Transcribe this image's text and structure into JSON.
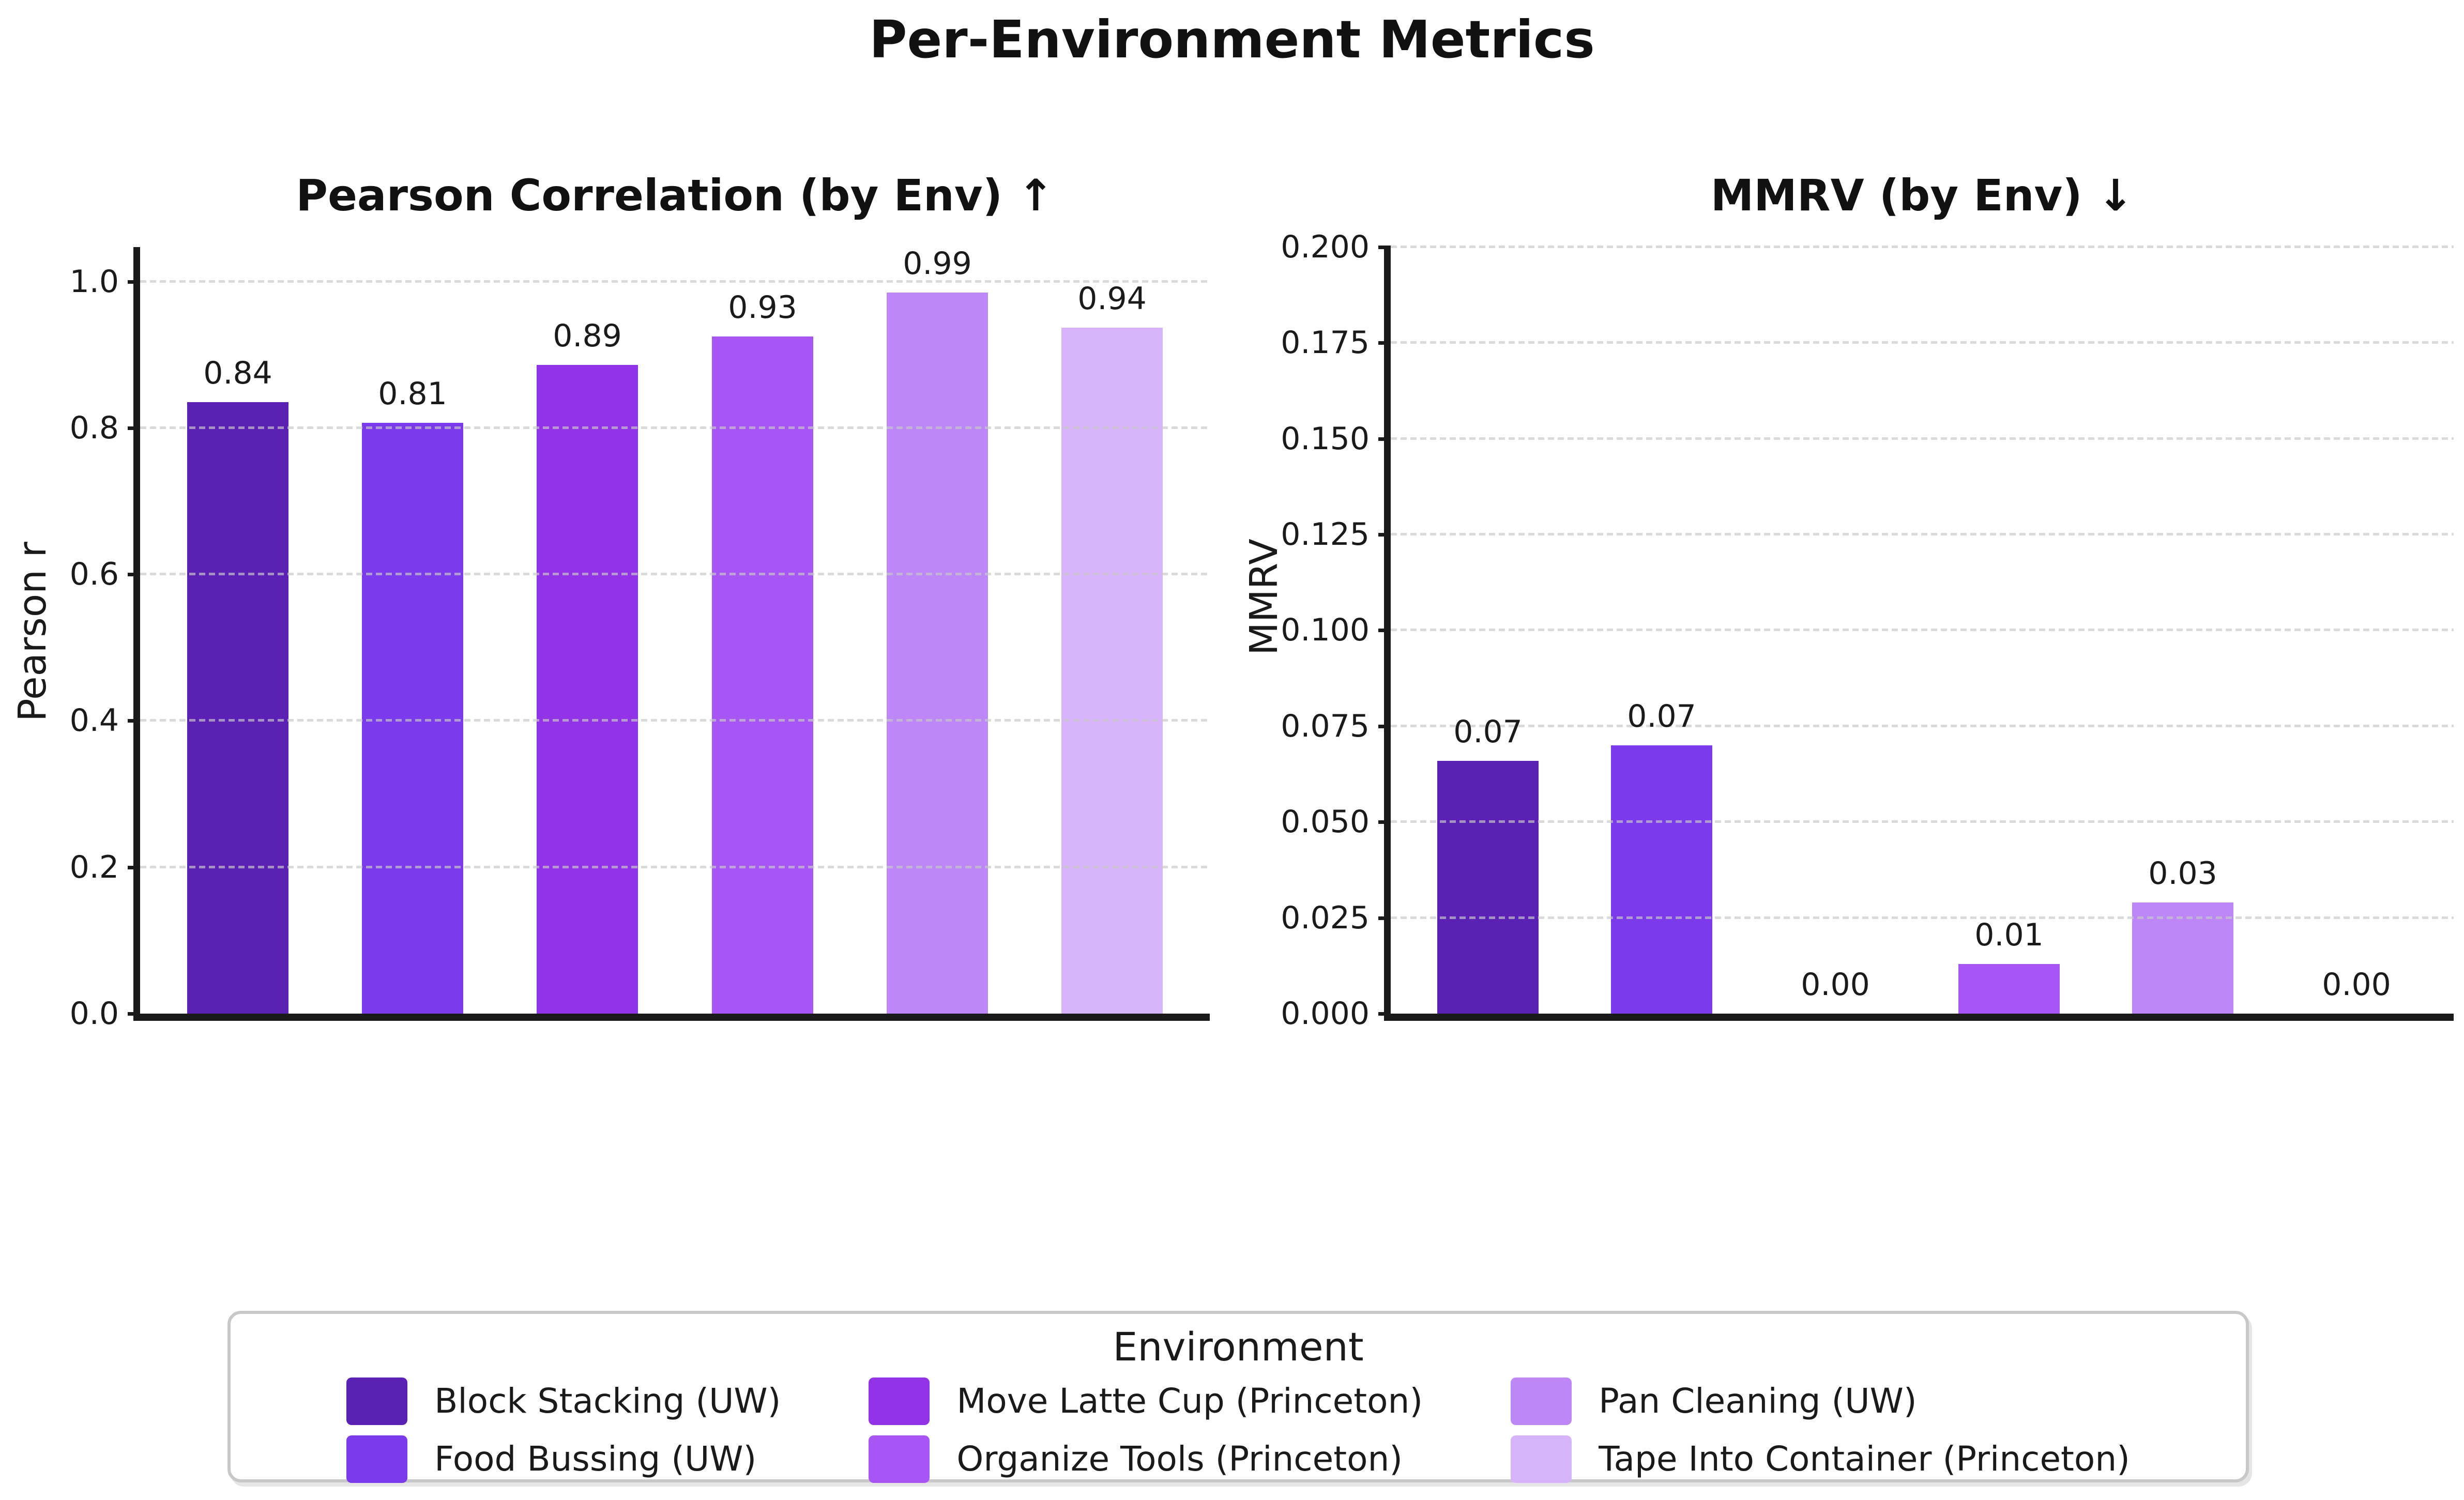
{
  "figure_title": "Per-Environment Metrics",
  "legend": {
    "title": "Environment",
    "items": [
      {
        "label": "Block Stacking (UW)",
        "color": "#5a21b4"
      },
      {
        "label": "Food Bussing (UW)",
        "color": "#7b3aeb"
      },
      {
        "label": "Move Latte Cup (Princeton)",
        "color": "#9333e8"
      },
      {
        "label": "Organize Tools (Princeton)",
        "color": "#a855f6"
      },
      {
        "label": "Pan Cleaning (UW)",
        "color": "#bd87f8"
      },
      {
        "label": "Tape Into Container (Princeton)",
        "color": "#d6b3fb"
      }
    ],
    "columns": 3
  },
  "chart_data": [
    {
      "type": "bar",
      "title": "Pearson Correlation (by Env) ↑",
      "ylabel": "Pearson r",
      "categories": [
        "Block Stacking (UW)",
        "Food Bussing (UW)",
        "Move Latte Cup (Princeton)",
        "Organize Tools (Princeton)",
        "Pan Cleaning (UW)",
        "Tape Into Container (Princeton)"
      ],
      "values": [
        0.835,
        0.807,
        0.886,
        0.925,
        0.985,
        0.937
      ],
      "bar_labels": [
        "0.84",
        "0.81",
        "0.89",
        "0.93",
        "0.99",
        "0.94"
      ],
      "bar_colors": [
        "#5a21b4",
        "#7b3aeb",
        "#9333e8",
        "#a855f6",
        "#bd87f8",
        "#d6b3fb"
      ],
      "yticks": [
        0.0,
        0.2,
        0.4,
        0.6,
        0.8,
        1.0
      ],
      "ytick_labels": [
        "0.0",
        "0.2",
        "0.4",
        "0.6",
        "0.8",
        "1.0"
      ],
      "ylim": [
        0,
        1.047
      ],
      "grid": "horizontal-dashed",
      "legend_position": "bottom-shared"
    },
    {
      "type": "bar",
      "title": "MMRV (by Env) ↓",
      "ylabel": "MMRV",
      "categories": [
        "Block Stacking (UW)",
        "Food Bussing (UW)",
        "Move Latte Cup (Princeton)",
        "Organize Tools (Princeton)",
        "Pan Cleaning (UW)",
        "Tape Into Container (Princeton)"
      ],
      "values": [
        0.066,
        0.07,
        0.0,
        0.013,
        0.029,
        0.0
      ],
      "bar_labels": [
        "0.07",
        "0.07",
        "0.00",
        "0.01",
        "0.03",
        "0.00"
      ],
      "bar_colors": [
        "#5a21b4",
        "#7b3aeb",
        "#9333e8",
        "#a855f6",
        "#bd87f8",
        "#d6b3fb"
      ],
      "yticks": [
        0.0,
        0.025,
        0.05,
        0.075,
        0.1,
        0.125,
        0.15,
        0.175,
        0.2
      ],
      "ytick_labels": [
        "0.000",
        "0.025",
        "0.050",
        "0.075",
        "0.100",
        "0.125",
        "0.150",
        "0.175",
        "0.200"
      ],
      "ylim": [
        0,
        0.2
      ],
      "grid": "horizontal-dashed",
      "legend_position": "bottom-shared"
    }
  ]
}
